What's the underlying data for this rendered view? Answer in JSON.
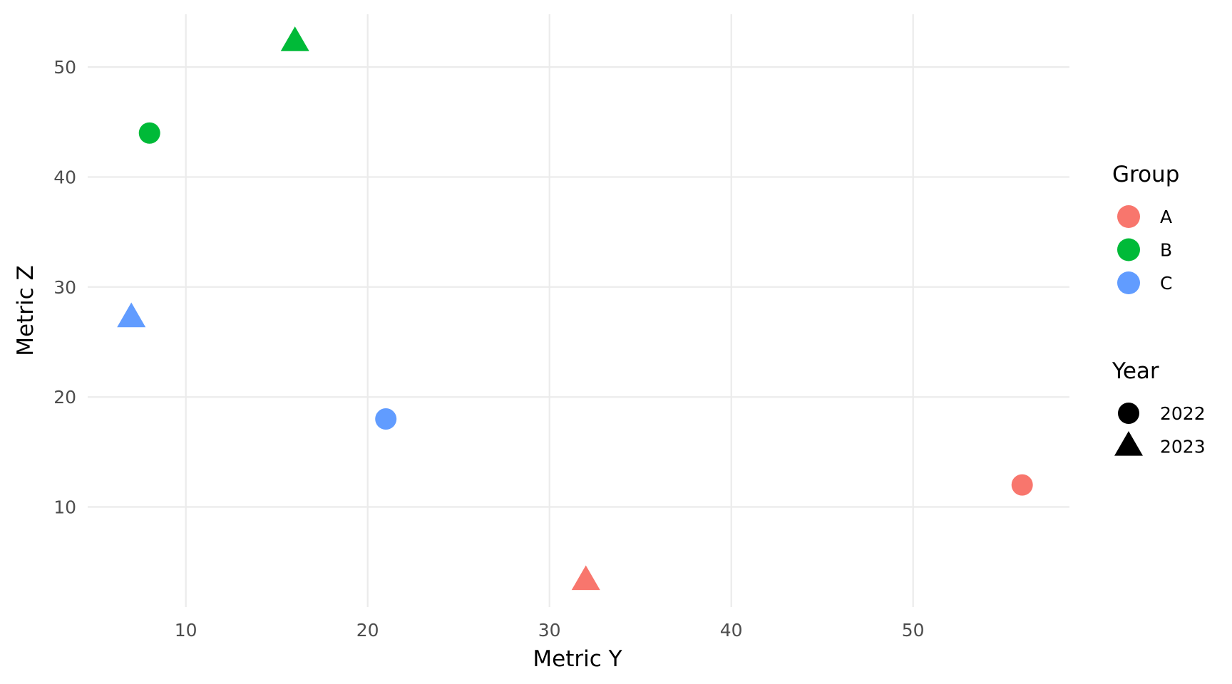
{
  "chart_data": {
    "type": "scatter",
    "xlabel": "Metric Y",
    "ylabel": "Metric Z",
    "xlim": [
      4.6,
      58.6
    ],
    "ylim": [
      0.9,
      54.8
    ],
    "x_ticks": [
      10,
      20,
      30,
      40,
      50
    ],
    "y_ticks": [
      10,
      20,
      30,
      40,
      50
    ],
    "grid": true,
    "legend_position": "right",
    "legend": {
      "color": {
        "title": "Group",
        "items": [
          {
            "label": "A",
            "color": "#F8766D"
          },
          {
            "label": "B",
            "color": "#00BA38"
          },
          {
            "label": "C",
            "color": "#619CFF"
          }
        ]
      },
      "shape": {
        "title": "Year",
        "items": [
          {
            "label": "2022",
            "shape": "circle"
          },
          {
            "label": "2023",
            "shape": "triangle"
          }
        ]
      }
    },
    "points": [
      {
        "group": "A",
        "year": "2022",
        "x": 56,
        "y": 12
      },
      {
        "group": "A",
        "year": "2023",
        "x": 32,
        "y": 3.3
      },
      {
        "group": "B",
        "year": "2022",
        "x": 8,
        "y": 44
      },
      {
        "group": "B",
        "year": "2023",
        "x": 16,
        "y": 52.3
      },
      {
        "group": "C",
        "year": "2022",
        "x": 21,
        "y": 18
      },
      {
        "group": "C",
        "year": "2023",
        "x": 7,
        "y": 27.2
      }
    ]
  }
}
